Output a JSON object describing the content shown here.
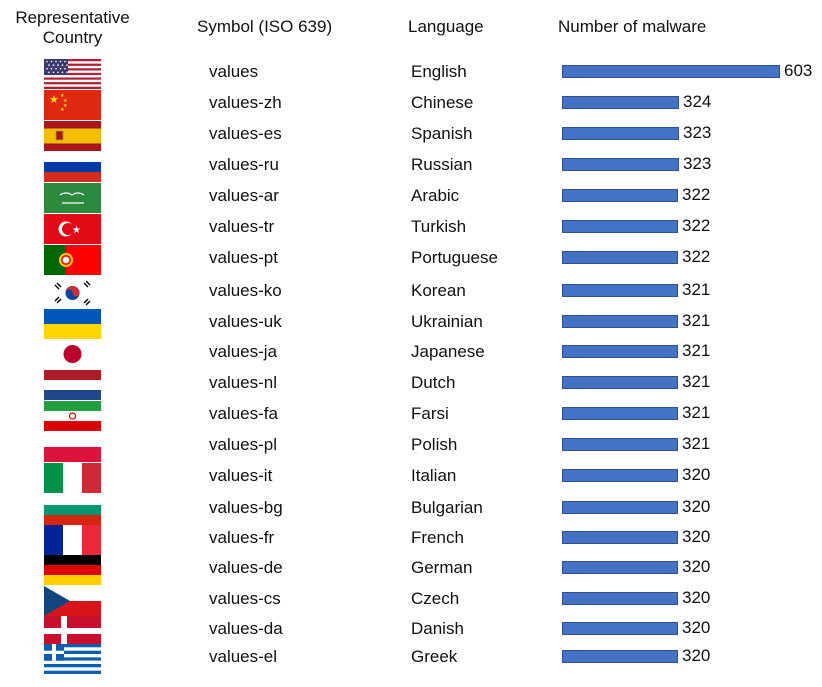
{
  "columns": {
    "country_line1": "Representative",
    "country_line2": "Country",
    "symbol": "Symbol (ISO 639)",
    "language": "Language",
    "count": "Number of malware"
  },
  "chart_data": {
    "type": "bar",
    "orientation": "horizontal",
    "title": "",
    "xlabel": "Number of malware",
    "ylabel": "",
    "xlim": [
      0,
      603
    ],
    "grid": false,
    "bar_color": "#4472c4",
    "categories": [
      "values",
      "values-zh",
      "values-es",
      "values-ru",
      "values-ar",
      "values-tr",
      "values-pt",
      "values-ko",
      "values-uk",
      "values-ja",
      "values-nl",
      "values-fa",
      "values-pl",
      "values-it",
      "values-bg",
      "values-fr",
      "values-de",
      "values-cs",
      "values-da",
      "values-el"
    ],
    "values": [
      603,
      324,
      323,
      323,
      322,
      322,
      322,
      321,
      321,
      321,
      321,
      321,
      321,
      320,
      320,
      320,
      320,
      320,
      320,
      320
    ]
  },
  "rows": [
    {
      "symbol": "values",
      "language": "English",
      "count": 603,
      "flag": "us-flag-icon"
    },
    {
      "symbol": "values-zh",
      "language": "Chinese",
      "count": 324,
      "flag": "china-flag-icon"
    },
    {
      "symbol": "values-es",
      "language": "Spanish",
      "count": 323,
      "flag": "spain-flag-icon"
    },
    {
      "symbol": "values-ru",
      "language": "Russian",
      "count": 323,
      "flag": "russia-flag-icon"
    },
    {
      "symbol": "values-ar",
      "language": "Arabic",
      "count": 322,
      "flag": "saudi-arabia-flag-icon"
    },
    {
      "symbol": "values-tr",
      "language": "Turkish",
      "count": 322,
      "flag": "turkey-flag-icon"
    },
    {
      "symbol": "values-pt",
      "language": "Portuguese",
      "count": 322,
      "flag": "portugal-flag-icon"
    },
    {
      "symbol": "values-ko",
      "language": "Korean",
      "count": 321,
      "flag": "south-korea-flag-icon"
    },
    {
      "symbol": "values-uk",
      "language": "Ukrainian",
      "count": 321,
      "flag": "ukraine-flag-icon"
    },
    {
      "symbol": "values-ja",
      "language": "Japanese",
      "count": 321,
      "flag": "japan-flag-icon"
    },
    {
      "symbol": "values-nl",
      "language": "Dutch",
      "count": 321,
      "flag": "netherlands-flag-icon"
    },
    {
      "symbol": "values-fa",
      "language": "Farsi",
      "count": 321,
      "flag": "iran-flag-icon"
    },
    {
      "symbol": "values-pl",
      "language": "Polish",
      "count": 321,
      "flag": "poland-flag-icon"
    },
    {
      "symbol": "values-it",
      "language": "Italian",
      "count": 320,
      "flag": "italy-flag-icon"
    },
    {
      "symbol": "values-bg",
      "language": "Bulgarian",
      "count": 320,
      "flag": "bulgaria-flag-icon"
    },
    {
      "symbol": "values-fr",
      "language": "French",
      "count": 320,
      "flag": "france-flag-icon"
    },
    {
      "symbol": "values-de",
      "language": "German",
      "count": 320,
      "flag": "germany-flag-icon"
    },
    {
      "symbol": "values-cs",
      "language": "Czech",
      "count": 320,
      "flag": "czech-flag-icon"
    },
    {
      "symbol": "values-da",
      "language": "Danish",
      "count": 320,
      "flag": "denmark-flag-icon"
    },
    {
      "symbol": "values-el",
      "language": "Greek",
      "count": 320,
      "flag": "greece-flag-icon"
    }
  ]
}
